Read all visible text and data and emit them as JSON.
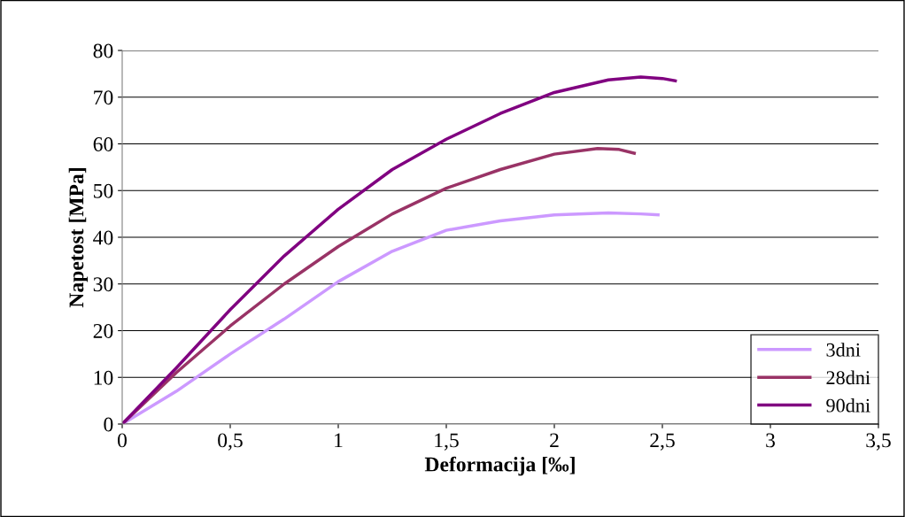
{
  "chart_data": {
    "type": "line",
    "xlabel": "Deformacija [‰]",
    "ylabel": "Napetost [MPa]",
    "xlim": [
      0,
      3.5
    ],
    "ylim": [
      0,
      80
    ],
    "xticks": [
      0,
      {
        "value": 0.5,
        "label": "0,5"
      },
      1,
      {
        "value": 1.5,
        "label": "1,5"
      },
      2,
      {
        "value": 2.5,
        "label": "2,5"
      },
      3,
      {
        "value": 3.5,
        "label": "3,5"
      }
    ],
    "yticks": [
      0,
      10,
      20,
      30,
      40,
      50,
      60,
      70,
      80
    ],
    "grid": "y",
    "legend": "bottom right",
    "marker": "none",
    "line_style": "solid",
    "series": [
      {
        "name": "3dni",
        "color": "#cc99ff",
        "x": [
          0,
          0.25,
          0.5,
          0.75,
          1,
          1.25,
          1.5,
          1.75,
          2,
          2.25,
          2.4,
          2.48
        ],
        "values": [
          0,
          7,
          15,
          22.5,
          30.5,
          37,
          41.5,
          43.5,
          44.8,
          45.2,
          45,
          44.8
        ]
      },
      {
        "name": "28dni",
        "color": "#993366",
        "x": [
          0,
          0.25,
          0.5,
          0.75,
          1,
          1.25,
          1.5,
          1.75,
          2,
          2.2,
          2.3,
          2.37
        ],
        "values": [
          0,
          11,
          21,
          30,
          38,
          45,
          50.5,
          54.5,
          57.8,
          59,
          58.8,
          58
        ]
      },
      {
        "name": "90dni",
        "color": "#800080",
        "x": [
          0,
          0.25,
          0.5,
          0.75,
          1,
          1.25,
          1.5,
          1.75,
          2,
          2.25,
          2.4,
          2.5,
          2.56
        ],
        "values": [
          0,
          12,
          24.5,
          36,
          46,
          54.5,
          61,
          66.5,
          71,
          73.7,
          74.3,
          74,
          73.5
        ]
      }
    ]
  }
}
